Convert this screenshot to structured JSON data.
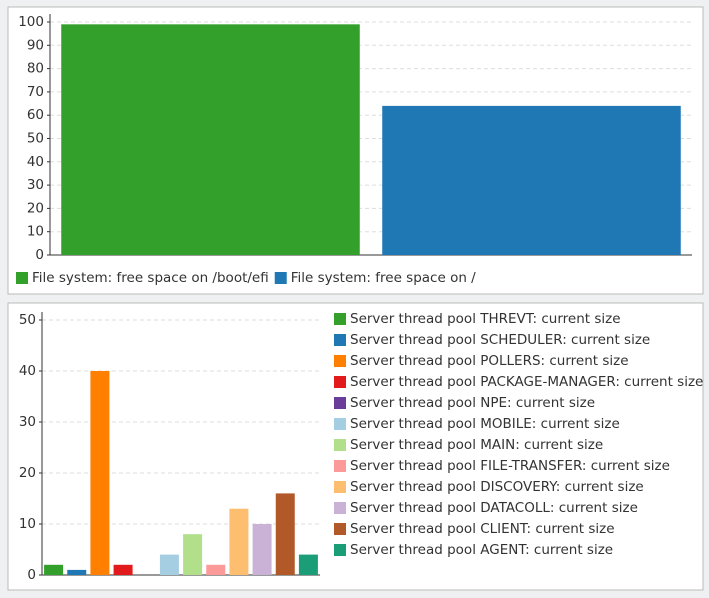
{
  "chart_data": [
    {
      "type": "bar",
      "legend": "bottom",
      "grid": true,
      "ylim": [
        0,
        100
      ],
      "yticks": [
        0,
        10,
        20,
        30,
        40,
        50,
        60,
        70,
        80,
        90,
        100
      ],
      "series": [
        {
          "name": "File system: free space on /boot/efi",
          "color": "#33a02c",
          "values": [
            99
          ]
        },
        {
          "name": "File system: free space on /",
          "color": "#1f78b4",
          "values": [
            64
          ]
        }
      ]
    },
    {
      "type": "bar",
      "legend": "right",
      "grid": true,
      "ylim": [
        0,
        50
      ],
      "yticks": [
        0,
        10,
        20,
        30,
        40,
        50
      ],
      "series": [
        {
          "name": "Server thread pool THREVT: current size",
          "color": "#33a02c",
          "values": [
            2
          ]
        },
        {
          "name": "Server thread pool SCHEDULER: current size",
          "color": "#1f78b4",
          "values": [
            1
          ]
        },
        {
          "name": "Server thread pool POLLERS: current size",
          "color": "#ff7f00",
          "values": [
            40
          ]
        },
        {
          "name": "Server thread pool PACKAGE-MANAGER: current size",
          "color": "#e31a1c",
          "values": [
            2
          ]
        },
        {
          "name": "Server thread pool NPE: current size",
          "color": "#6a3d9a",
          "values": [
            0
          ]
        },
        {
          "name": "Server thread pool MOBILE: current size",
          "color": "#a6cee3",
          "values": [
            4
          ]
        },
        {
          "name": "Server thread pool MAIN: current size",
          "color": "#b2df8a",
          "values": [
            8
          ]
        },
        {
          "name": "Server thread pool FILE-TRANSFER: current size",
          "color": "#fb9a99",
          "values": [
            2
          ]
        },
        {
          "name": "Server thread pool DISCOVERY: current size",
          "color": "#fdbf6f",
          "values": [
            13
          ]
        },
        {
          "name": "Server thread pool DATACOLL: current size",
          "color": "#cab2d6",
          "values": [
            10
          ]
        },
        {
          "name": "Server thread pool CLIENT: current size",
          "color": "#b15928",
          "values": [
            16
          ]
        },
        {
          "name": "Server thread pool AGENT: current size",
          "color": "#1b9e77",
          "values": [
            4
          ]
        }
      ]
    }
  ]
}
